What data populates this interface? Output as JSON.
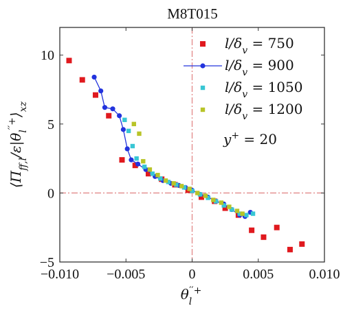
{
  "chart_data": {
    "type": "scatter",
    "title": "M8T015",
    "xlabel": "θ_l''+",
    "ylabel": "⟨Π_ff,l/ε|θ_l''+⟩_xz",
    "xlim": [
      -0.01,
      0.01
    ],
    "ylim": [
      -5,
      12
    ],
    "xticks": [
      -0.01,
      -0.005,
      0,
      0.005,
      0.01
    ],
    "xtick_labels": [
      "−0.010",
      "−0.005",
      "0",
      "0.005",
      "0.010"
    ],
    "yticks": [
      -5,
      0,
      5,
      10
    ],
    "ytick_labels": [
      "−5",
      "0",
      "5",
      "10"
    ],
    "reference_lines": {
      "x": 0,
      "y": 0,
      "style": "dash-dot",
      "color": "#e08080"
    },
    "legend_position": "top-right",
    "annotation": "y+ = 20",
    "series": [
      {
        "name": "l/δv = 750",
        "marker": "square",
        "line": false,
        "color": "#e0191e",
        "points": [
          [
            -0.0093,
            9.6
          ],
          [
            -0.0083,
            8.2
          ],
          [
            -0.0073,
            7.1
          ],
          [
            -0.0063,
            5.6
          ],
          [
            -0.0053,
            2.4
          ],
          [
            -0.0043,
            2.0
          ],
          [
            -0.0033,
            1.4
          ],
          [
            -0.0023,
            1.0
          ],
          [
            -0.0013,
            0.6
          ],
          [
            -0.0003,
            0.2
          ],
          [
            0.0007,
            -0.3
          ],
          [
            0.0017,
            -0.6
          ],
          [
            0.0025,
            -1.1
          ],
          [
            0.0035,
            -1.6
          ],
          [
            0.0045,
            -2.7
          ],
          [
            0.0054,
            -3.2
          ],
          [
            0.0064,
            -2.5
          ],
          [
            0.0074,
            -4.1
          ],
          [
            0.0083,
            -3.7
          ]
        ]
      },
      {
        "name": "l/δv = 900",
        "marker": "circle",
        "line": true,
        "color": "#2233dd",
        "points": [
          [
            -0.0074,
            8.4
          ],
          [
            -0.0069,
            7.4
          ],
          [
            -0.0066,
            6.2
          ],
          [
            -0.006,
            6.1
          ],
          [
            -0.0055,
            5.6
          ],
          [
            -0.0052,
            4.6
          ],
          [
            -0.0049,
            3.2
          ],
          [
            -0.0046,
            2.4
          ],
          [
            -0.0041,
            2.1
          ],
          [
            -0.0035,
            1.7
          ],
          [
            -0.0028,
            1.2
          ],
          [
            -0.0022,
            0.9
          ],
          [
            -0.0016,
            0.7
          ],
          [
            -0.001,
            0.55
          ],
          [
            -0.0005,
            0.4
          ],
          [
            0.0,
            0.2
          ],
          [
            0.0006,
            -0.1
          ],
          [
            0.0012,
            -0.3
          ],
          [
            0.0018,
            -0.6
          ],
          [
            0.0024,
            -0.8
          ],
          [
            0.003,
            -1.2
          ],
          [
            0.0036,
            -1.6
          ],
          [
            0.004,
            -1.7
          ],
          [
            0.0044,
            -1.4
          ]
        ]
      },
      {
        "name": "l/δv = 1050",
        "marker": "square",
        "line": false,
        "color": "#38c6d4",
        "points": [
          [
            -0.0051,
            5.3
          ],
          [
            -0.0048,
            4.5
          ],
          [
            -0.0045,
            3.4
          ],
          [
            -0.0042,
            2.5
          ],
          [
            -0.0036,
            1.9
          ],
          [
            -0.003,
            1.4
          ],
          [
            -0.0024,
            1.05
          ],
          [
            -0.0018,
            0.8
          ],
          [
            -0.0012,
            0.6
          ],
          [
            -0.0006,
            0.4
          ],
          [
            0.0,
            0.15
          ],
          [
            0.0006,
            -0.1
          ],
          [
            0.0012,
            -0.35
          ],
          [
            0.0018,
            -0.6
          ],
          [
            0.0024,
            -0.9
          ],
          [
            0.003,
            -1.2
          ],
          [
            0.0036,
            -1.5
          ],
          [
            0.0041,
            -1.6
          ],
          [
            0.0046,
            -1.5
          ]
        ]
      },
      {
        "name": "l/δv = 1200",
        "marker": "square",
        "line": false,
        "color": "#b8c428",
        "points": [
          [
            -0.0044,
            5.0
          ],
          [
            -0.004,
            4.3
          ],
          [
            -0.0037,
            2.3
          ],
          [
            -0.0032,
            1.7
          ],
          [
            -0.0026,
            1.3
          ],
          [
            -0.002,
            0.9
          ],
          [
            -0.0014,
            0.7
          ],
          [
            -0.0008,
            0.5
          ],
          [
            -0.0002,
            0.3
          ],
          [
            0.0004,
            0.0
          ],
          [
            0.001,
            -0.2
          ],
          [
            0.0016,
            -0.5
          ],
          [
            0.0022,
            -0.7
          ],
          [
            0.0028,
            -1.0
          ],
          [
            0.0034,
            -1.3
          ],
          [
            0.0038,
            -1.5
          ]
        ]
      }
    ]
  }
}
